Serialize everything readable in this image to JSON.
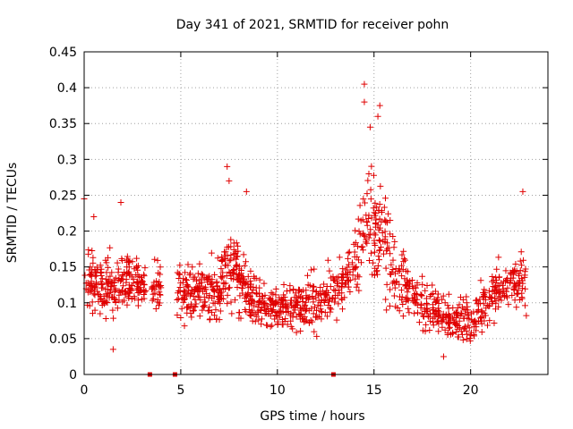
{
  "chart_data": {
    "type": "scatter",
    "title": "Day 341 of 2021, SRMTID for receiver pohn",
    "xlabel": "GPS time / hours",
    "ylabel": "SRMTID / TECUs",
    "xlim": [
      0,
      24
    ],
    "ylim": [
      0,
      0.45
    ],
    "x_ticks": [
      0,
      5,
      10,
      15,
      20
    ],
    "y_ticks": [
      0,
      0.05,
      0.1,
      0.15,
      0.2,
      0.25,
      0.3,
      0.35,
      0.4,
      0.45
    ],
    "x_tick_labels": [
      "0",
      "5",
      "10",
      "15",
      "20"
    ],
    "y_tick_labels": [
      "0",
      "0.05",
      "0.1",
      "0.15",
      "0.2",
      "0.25",
      "0.3",
      "0.35",
      "0.4",
      "0.45"
    ],
    "grid": true,
    "marker": "+",
    "color": "#e00000",
    "zero_value_markers": [
      3.4,
      4.7,
      12.9
    ],
    "series": [
      {
        "name": "SRMTID",
        "envelope": [
          {
            "t": 0.0,
            "center": 0.125,
            "spread": 0.045
          },
          {
            "t": 0.5,
            "center": 0.13,
            "spread": 0.05
          },
          {
            "t": 1.0,
            "center": 0.12,
            "spread": 0.045
          },
          {
            "t": 1.5,
            "center": 0.125,
            "spread": 0.05
          },
          {
            "t": 2.0,
            "center": 0.13,
            "spread": 0.05
          },
          {
            "t": 2.7,
            "center": 0.13,
            "spread": 0.04
          },
          {
            "t": 3.6,
            "center": 0.12,
            "spread": 0.04
          },
          {
            "t": 5.0,
            "center": 0.115,
            "spread": 0.05
          },
          {
            "t": 6.0,
            "center": 0.12,
            "spread": 0.05
          },
          {
            "t": 7.0,
            "center": 0.11,
            "spread": 0.05
          },
          {
            "t": 7.5,
            "center": 0.16,
            "spread": 0.07
          },
          {
            "t": 8.0,
            "center": 0.13,
            "spread": 0.06
          },
          {
            "t": 9.0,
            "center": 0.1,
            "spread": 0.05
          },
          {
            "t": 10.0,
            "center": 0.09,
            "spread": 0.04
          },
          {
            "t": 11.0,
            "center": 0.09,
            "spread": 0.045
          },
          {
            "t": 12.0,
            "center": 0.1,
            "spread": 0.05
          },
          {
            "t": 13.0,
            "center": 0.12,
            "spread": 0.05
          },
          {
            "t": 14.0,
            "center": 0.15,
            "spread": 0.06
          },
          {
            "t": 14.7,
            "center": 0.22,
            "spread": 0.09
          },
          {
            "t": 15.3,
            "center": 0.2,
            "spread": 0.09
          },
          {
            "t": 16.0,
            "center": 0.15,
            "spread": 0.07
          },
          {
            "t": 17.0,
            "center": 0.11,
            "spread": 0.05
          },
          {
            "t": 18.0,
            "center": 0.09,
            "spread": 0.045
          },
          {
            "t": 19.0,
            "center": 0.075,
            "spread": 0.035
          },
          {
            "t": 20.0,
            "center": 0.075,
            "spread": 0.035
          },
          {
            "t": 21.0,
            "center": 0.11,
            "spread": 0.045
          },
          {
            "t": 22.0,
            "center": 0.125,
            "spread": 0.05
          },
          {
            "t": 22.9,
            "center": 0.13,
            "spread": 0.05
          }
        ],
        "gaps": [
          [
            3.2,
            3.5
          ],
          [
            4.0,
            4.8
          ],
          [
            5.0,
            5.05
          ]
        ],
        "notable_points": [
          {
            "x": 14.5,
            "y": 0.405
          },
          {
            "x": 14.5,
            "y": 0.38
          },
          {
            "x": 15.3,
            "y": 0.375
          },
          {
            "x": 15.2,
            "y": 0.36
          },
          {
            "x": 14.8,
            "y": 0.345
          },
          {
            "x": 7.4,
            "y": 0.29
          },
          {
            "x": 7.5,
            "y": 0.27
          },
          {
            "x": 8.4,
            "y": 0.255
          },
          {
            "x": 22.7,
            "y": 0.255
          },
          {
            "x": 1.9,
            "y": 0.24
          },
          {
            "x": 0.0,
            "y": 0.245
          },
          {
            "x": 0.5,
            "y": 0.22
          },
          {
            "x": 1.5,
            "y": 0.035
          },
          {
            "x": 18.6,
            "y": 0.025
          }
        ]
      }
    ]
  }
}
